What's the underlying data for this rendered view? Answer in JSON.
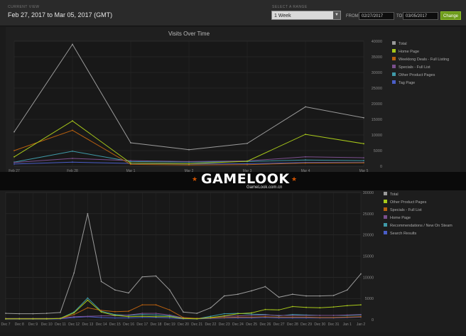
{
  "header": {
    "current_view_caption": "CURRENT VIEW",
    "range_text": "Feb 27, 2017 to Mar 05, 2017 (GMT)",
    "select_range_caption": "SELECT A RANGE",
    "selected_range": "1 Week",
    "from_label": "FROM:",
    "from_value": "02/27/2017",
    "to_label": "TO:",
    "to_value": "03/05/2017",
    "change_label": "Change"
  },
  "watermark": {
    "logo_text": "GAMELOOK",
    "logo_sub": "GameLook.com.cn"
  },
  "chart_data": [
    {
      "type": "line",
      "title": "Visits Over Time",
      "x": [
        "Feb 27",
        "Feb 28",
        "Mar 1",
        "Mar 2",
        "Mar 3",
        "Mar 4",
        "Mar 5"
      ],
      "ylim": [
        0,
        40000
      ],
      "y_ticks": [
        0,
        5000,
        10000,
        15000,
        20000,
        25000,
        30000,
        35000,
        40000
      ],
      "legend_position": "top-right",
      "grid": true,
      "series": [
        {
          "name": "Total",
          "color": "#9a9a9a",
          "values": [
            11000,
            39000,
            7500,
            5300,
            7300,
            19000,
            15500
          ]
        },
        {
          "name": "Home Page",
          "color": "#a8c81a",
          "values": [
            3000,
            14500,
            1000,
            800,
            1600,
            10200,
            7200
          ]
        },
        {
          "name": "Weeklong Deals - Full Listing",
          "color": "#b8600f",
          "values": [
            5000,
            11500,
            600,
            400,
            500,
            1000,
            1100
          ]
        },
        {
          "name": "Specials - Full List",
          "color": "#7a4f8e",
          "values": [
            1200,
            2500,
            1800,
            1500,
            1700,
            3000,
            2700
          ]
        },
        {
          "name": "Other Product Pages",
          "color": "#3f9aa8",
          "values": [
            1300,
            4800,
            1500,
            1300,
            1500,
            2000,
            1800
          ]
        },
        {
          "name": "Tag Page",
          "color": "#4a5ec8",
          "values": [
            700,
            1300,
            900,
            700,
            800,
            1200,
            1200
          ]
        }
      ]
    },
    {
      "type": "line",
      "title": "",
      "x": [
        "Dec 7",
        "Dec 8",
        "Dec 9",
        "Dec 10",
        "Dec 11",
        "Dec 12",
        "Dec 13",
        "Dec 14",
        "Dec 15",
        "Dec 16",
        "Dec 17",
        "Dec 18",
        "Dec 19",
        "Dec 20",
        "Dec 21",
        "Dec 22",
        "Dec 23",
        "Dec 24",
        "Dec 25",
        "Dec 26",
        "Dec 27",
        "Dec 28",
        "Dec 29",
        "Dec 30",
        "Dec 31",
        "Jan 1",
        "Jan 2"
      ],
      "ylim": [
        0,
        30000
      ],
      "y_ticks": [
        0,
        5000,
        10000,
        15000,
        20000,
        25000,
        30000
      ],
      "legend_position": "top-right",
      "grid": true,
      "series": [
        {
          "name": "Total",
          "color": "#9a9a9a",
          "values": [
            1500,
            1400,
            1400,
            1500,
            1700,
            11000,
            25000,
            9000,
            7000,
            6300,
            10100,
            10300,
            7000,
            1800,
            1500,
            2800,
            5600,
            6000,
            6800,
            7800,
            5300,
            6000,
            5600,
            5600,
            5700,
            7000,
            10800
          ]
        },
        {
          "name": "Other Product Pages",
          "color": "#a8c81a",
          "values": [
            200,
            200,
            200,
            200,
            300,
            1600,
            4600,
            1800,
            1000,
            700,
            800,
            700,
            700,
            300,
            200,
            500,
            900,
            1400,
            1600,
            2400,
            2300,
            3100,
            2900,
            2800,
            3000,
            3300,
            3500
          ]
        },
        {
          "name": "Specials - Full List",
          "color": "#b8600f",
          "values": [
            200,
            200,
            200,
            200,
            300,
            1200,
            2800,
            2200,
            1900,
            2000,
            3500,
            3500,
            2300,
            500,
            300,
            400,
            500,
            600,
            600,
            700,
            600,
            600,
            600,
            500,
            500,
            600,
            700
          ]
        },
        {
          "name": "Home Page",
          "color": "#7a4f8e",
          "values": [
            300,
            300,
            300,
            300,
            300,
            700,
            800,
            900,
            900,
            1100,
            1500,
            1500,
            1100,
            400,
            300,
            500,
            800,
            900,
            1000,
            1100,
            1000,
            1000,
            1000,
            1000,
            1000,
            1100,
            1200
          ]
        },
        {
          "name": "Recommendations / New On Steam",
          "color": "#3f9aa8",
          "values": [
            200,
            200,
            200,
            200,
            300,
            1800,
            5100,
            2000,
            1200,
            1000,
            1200,
            1100,
            900,
            300,
            200,
            800,
            1400,
            1500,
            1300,
            1200,
            900,
            1200,
            1100,
            1000,
            1000,
            1000,
            1100
          ]
        },
        {
          "name": "Search Results",
          "color": "#4a5ec8",
          "values": [
            150,
            150,
            150,
            150,
            200,
            500,
            700,
            500,
            400,
            400,
            500,
            500,
            400,
            200,
            200,
            300,
            400,
            400,
            400,
            500,
            400,
            400,
            400,
            400,
            400,
            500,
            600
          ]
        }
      ]
    }
  ]
}
